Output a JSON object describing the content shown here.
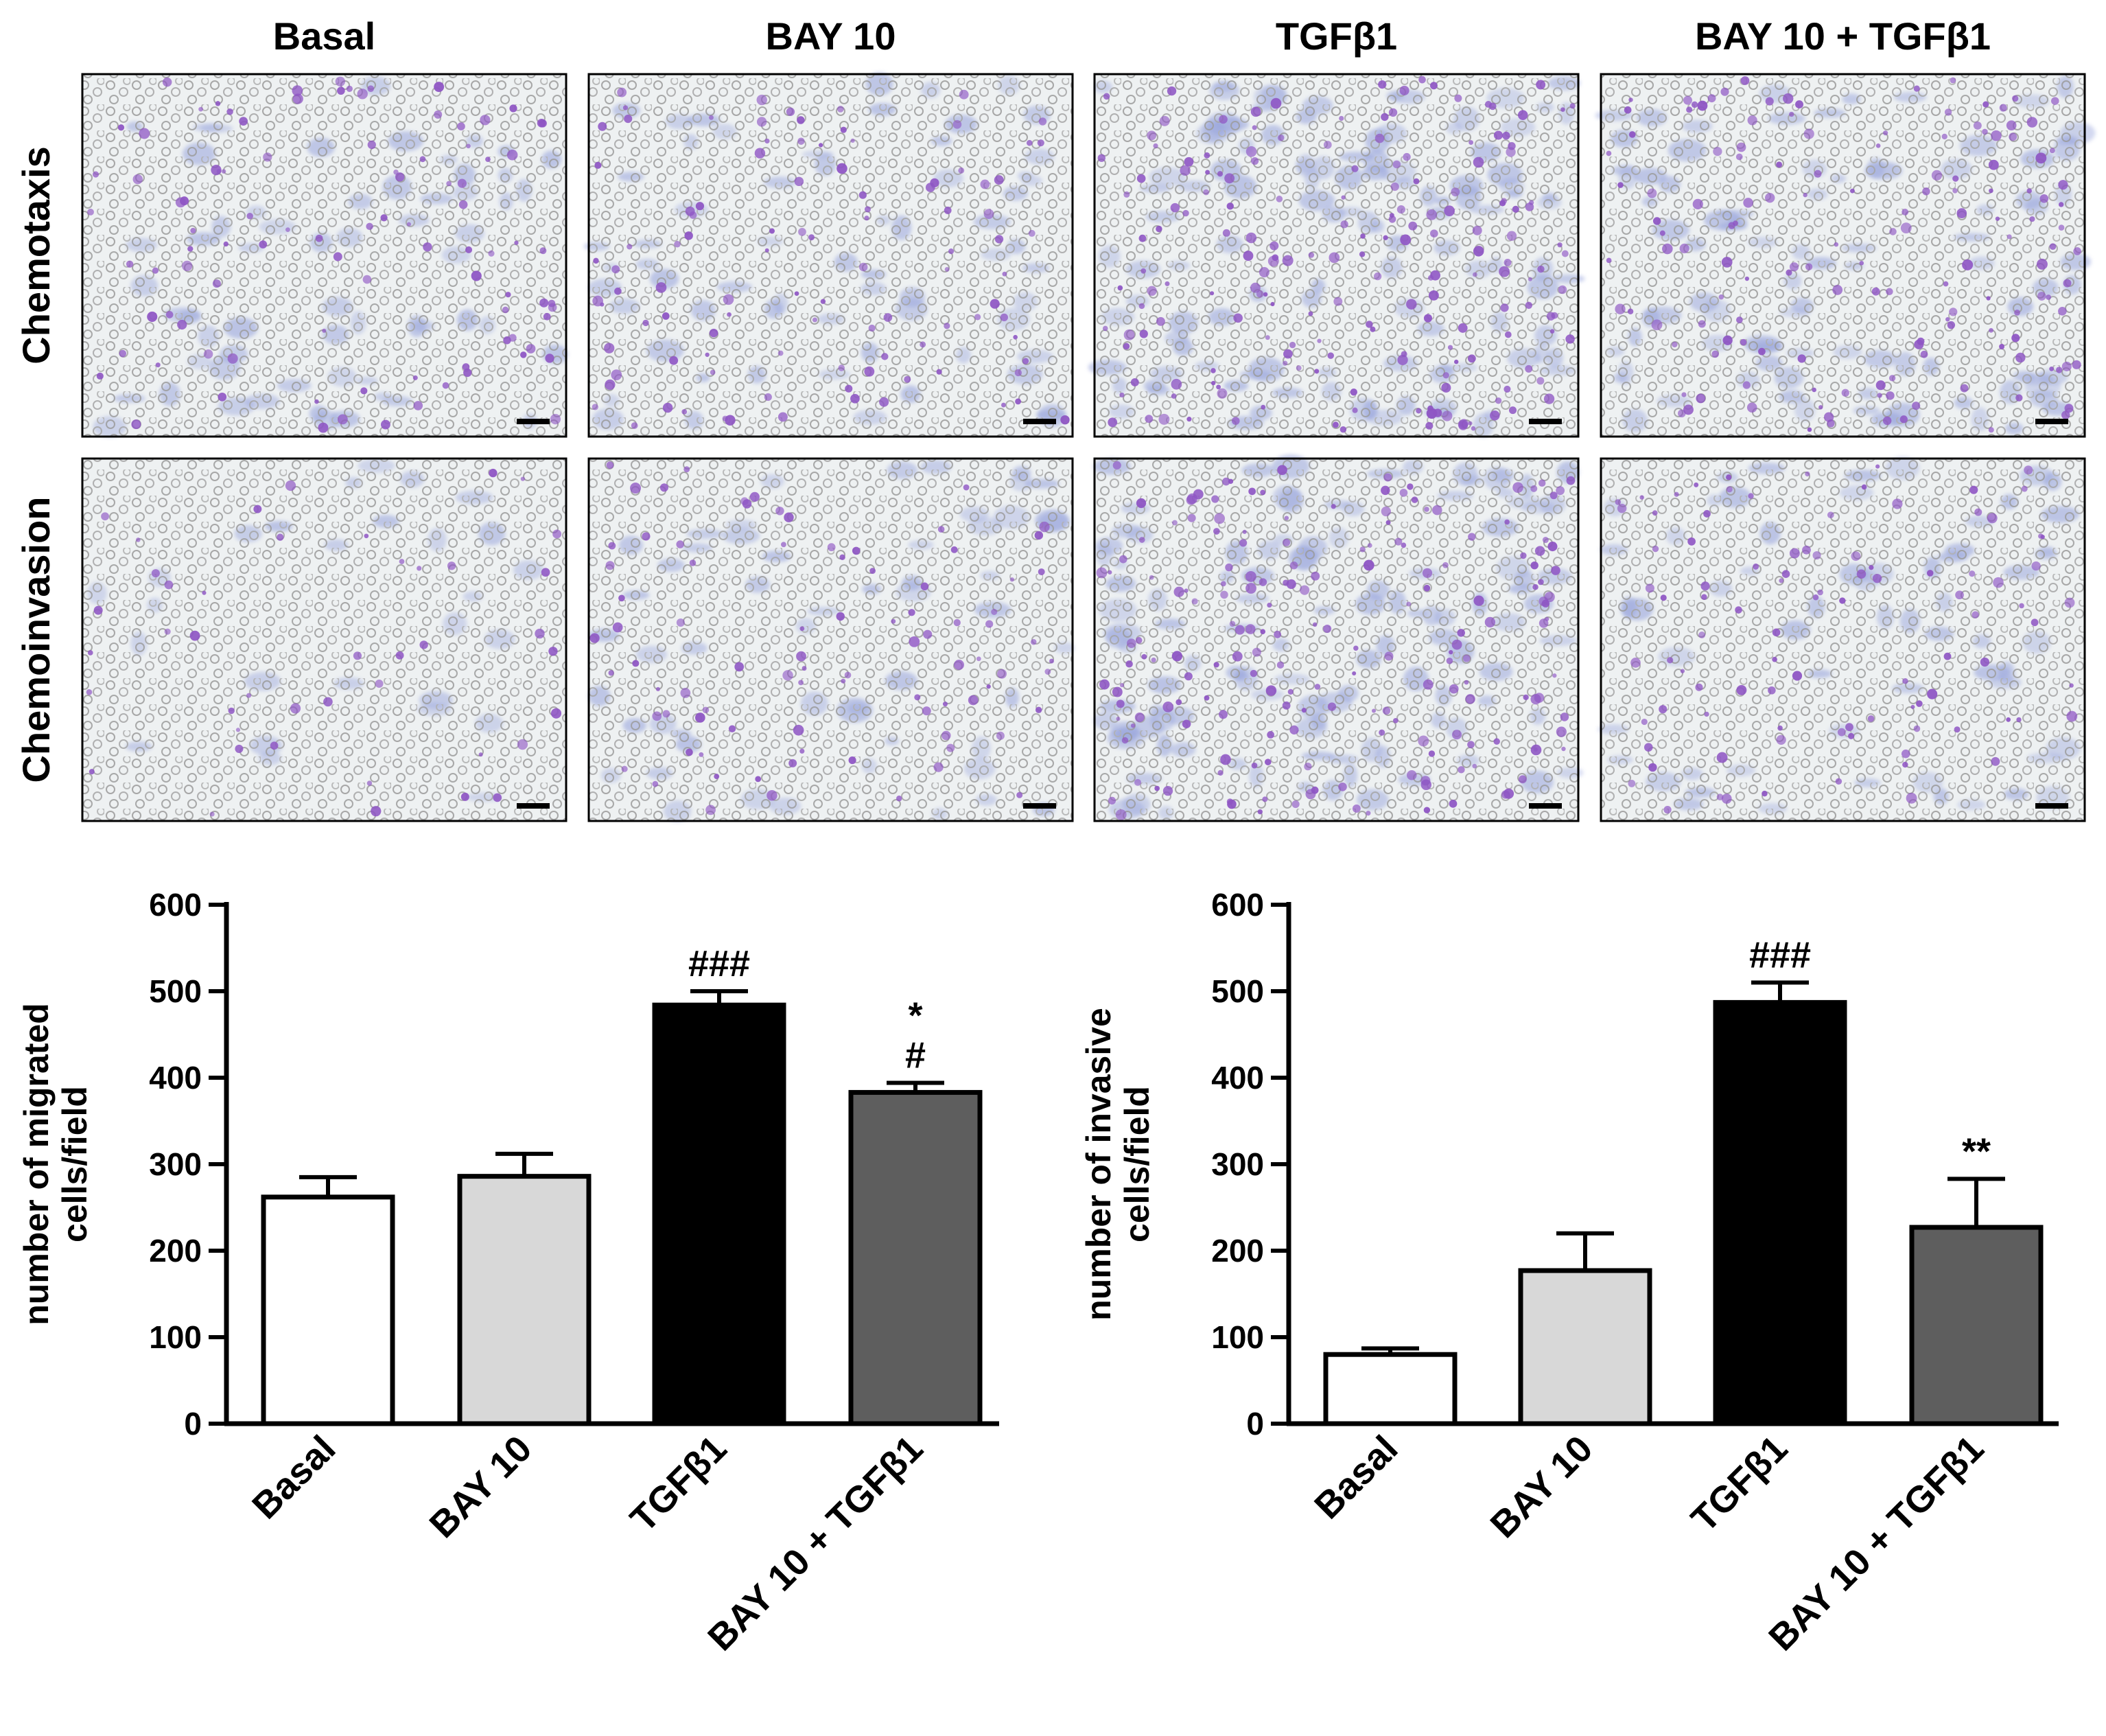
{
  "micrographs": {
    "columns": [
      "Basal",
      "BAY 10",
      "TGFβ1",
      "BAY 10 + TGFβ1"
    ],
    "rows": [
      "Chemotaxis",
      "Chemoinvasion"
    ],
    "stain_color": "#8e55c4",
    "membrane_color": "#eef1f2",
    "pore_color": "#9a9a9a",
    "relative_density": [
      [
        1.0,
        1.05,
        1.9,
        1.5
      ],
      [
        0.45,
        0.9,
        1.9,
        1.0
      ]
    ]
  },
  "chart_data": [
    {
      "type": "bar",
      "categories": [
        "Basal",
        "BAY 10",
        "TGFβ1",
        "BAY 10 + TGFβ1"
      ],
      "values": [
        262,
        286,
        484,
        383
      ],
      "errors": [
        23,
        26,
        16,
        11
      ],
      "annotations": [
        "",
        "",
        "###",
        "*\n#"
      ],
      "colors": [
        "#ffffff",
        "#d8d8d8",
        "#000000",
        "#5e5e5e"
      ],
      "ylabel_lines": [
        "number of migrated",
        "cells/field"
      ],
      "yticks": [
        0,
        100,
        200,
        300,
        400,
        500,
        600
      ],
      "ylim": [
        0,
        600
      ]
    },
    {
      "type": "bar",
      "categories": [
        "Basal",
        "BAY 10",
        "TGFβ1",
        "BAY 10 + TGFβ1"
      ],
      "values": [
        80,
        177,
        487,
        227
      ],
      "errors": [
        7,
        43,
        23,
        56
      ],
      "annotations": [
        "",
        "",
        "###",
        "**"
      ],
      "colors": [
        "#ffffff",
        "#d8d8d8",
        "#000000",
        "#5e5e5e"
      ],
      "ylabel_lines": [
        "number of invasive",
        "cells/field"
      ],
      "yticks": [
        0,
        100,
        200,
        300,
        400,
        500,
        600
      ],
      "ylim": [
        0,
        600
      ]
    }
  ]
}
